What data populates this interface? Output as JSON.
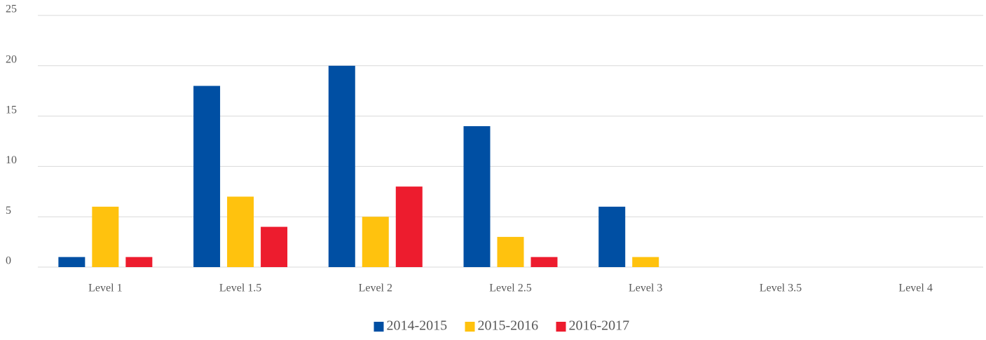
{
  "chart_data": {
    "type": "bar",
    "categories": [
      "Level 1",
      "Level 1.5",
      "Level 2",
      "Level 2.5",
      "Level 3",
      "Level 3.5",
      "Level 4"
    ],
    "series": [
      {
        "name": "2014-2015",
        "color": "#004fa3",
        "values": [
          1,
          18,
          20,
          14,
          6,
          0,
          0
        ]
      },
      {
        "name": "2015-2016",
        "color": "#ffc20e",
        "values": [
          6,
          7,
          5,
          3,
          1,
          0,
          0
        ]
      },
      {
        "name": "2016-2017",
        "color": "#ed1c2e",
        "values": [
          1,
          4,
          8,
          1,
          0,
          0,
          0
        ]
      }
    ],
    "ylim": [
      0,
      25
    ],
    "yticks": [
      0,
      5,
      10,
      15,
      20,
      25
    ],
    "grid": true,
    "legend": "bottom"
  }
}
